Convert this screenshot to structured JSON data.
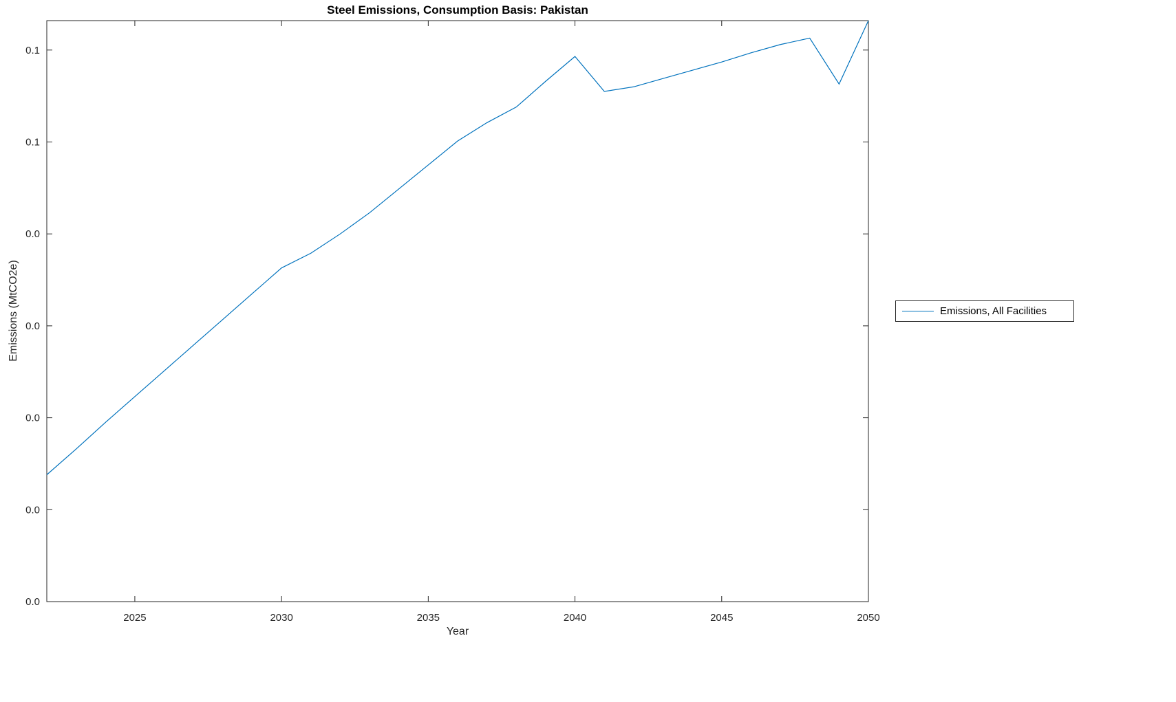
{
  "chart_data": {
    "type": "line",
    "title": "Steel Emissions, Consumption Basis: Pakistan",
    "xlabel": "Year",
    "ylabel": "Emissions (MtCO2e)",
    "xlim": [
      2022,
      2050
    ],
    "ylim": [
      0,
      0.0632
    ],
    "grid": false,
    "legend_position": "outside-right",
    "axis_color": "#262626",
    "x": [
      2022,
      2023,
      2024,
      2025,
      2026,
      2027,
      2028,
      2029,
      2030,
      2031,
      2032,
      2033,
      2034,
      2035,
      2036,
      2037,
      2038,
      2039,
      2040,
      2041,
      2042,
      2043,
      2044,
      2045,
      2046,
      2047,
      2048,
      2049,
      2050
    ],
    "series": [
      {
        "name": "Emissions, All Facilities",
        "color": "#0072BD",
        "values": [
          0.0138,
          0.0166,
          0.0195,
          0.0223,
          0.0251,
          0.0279,
          0.0307,
          0.0335,
          0.0363,
          0.0379,
          0.04,
          0.0423,
          0.0449,
          0.0475,
          0.0501,
          0.0521,
          0.0538,
          0.0566,
          0.0593,
          0.0555,
          0.056,
          0.0569,
          0.0578,
          0.0587,
          0.0597,
          0.0606,
          0.0613,
          0.0563,
          0.0632
        ]
      }
    ],
    "xticks": {
      "values": [
        2025,
        2030,
        2035,
        2040,
        2045,
        2050
      ],
      "labels": [
        "2025",
        "2030",
        "2035",
        "2040",
        "2045",
        "2050"
      ]
    },
    "yticks": {
      "values": [
        0,
        0.01,
        0.02,
        0.03,
        0.04,
        0.05,
        0.06
      ],
      "labels": [
        "0.0",
        "0.0",
        "0.0",
        "0.0",
        "0.0",
        "0.1",
        "0.1"
      ]
    },
    "legend_entries": [
      {
        "label": "Emissions, All Facilities",
        "color": "#0072BD"
      }
    ]
  }
}
